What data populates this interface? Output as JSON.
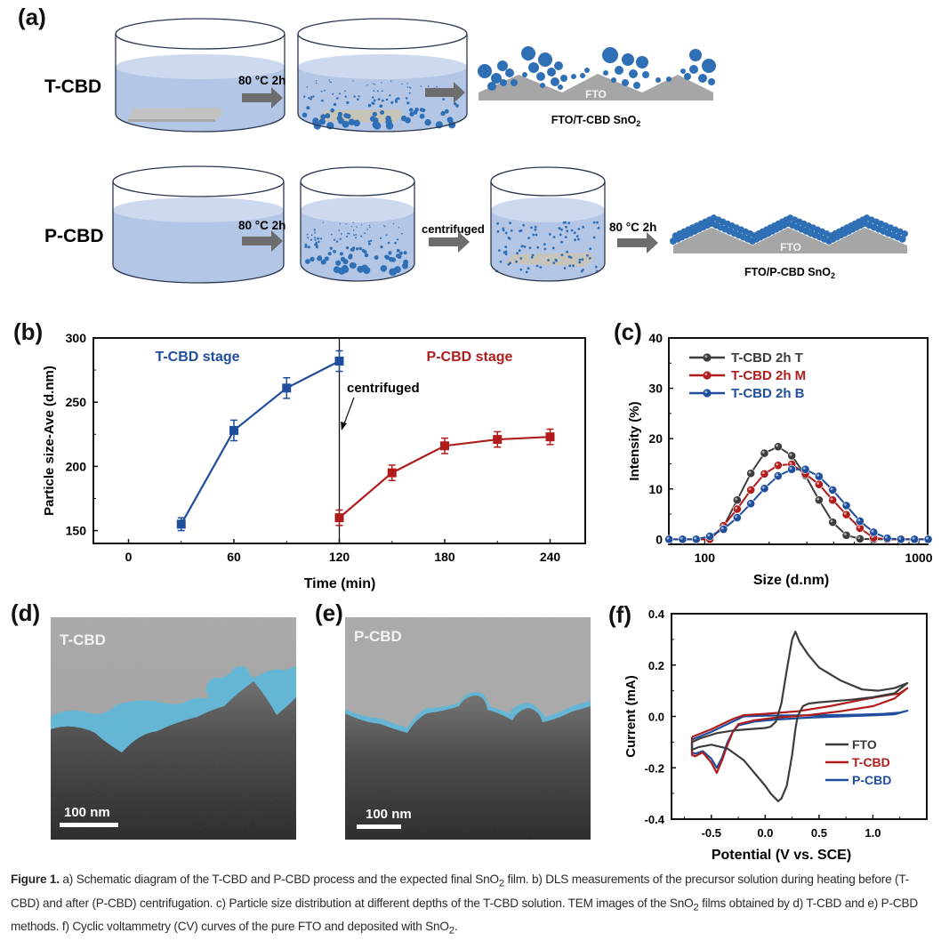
{
  "figure": {
    "panel_labels": {
      "a": "(a)",
      "b": "(b)",
      "c": "(c)",
      "d": "(d)",
      "e": "(e)",
      "f": "(f)"
    },
    "schematic": {
      "rows": [
        {
          "name": "T-CBD",
          "step1_label": "80 °C 2h",
          "result_label": "FTO/T-CBD SnO",
          "result_sub": "2",
          "substrate_label": "FTO"
        },
        {
          "name": "P-CBD",
          "step1_label": "80 °C 2h",
          "step2_label": "centrifuged",
          "step3_label": "80 °C 2h",
          "result_label": "FTO/P-CBD SnO",
          "result_sub": "2",
          "substrate_label": "FTO"
        }
      ]
    },
    "tem": [
      {
        "label": "T-CBD",
        "scale": "100 nm"
      },
      {
        "label": "P-CBD",
        "scale": "100 nm"
      }
    ],
    "caption": {
      "lead": "Figure 1.",
      "text_parts": [
        " a) Schematic diagram of the T-CBD and P-CBD process and the expected final SnO",
        "2",
        " film. b) DLS measurements of the precursor solution during heating before (T-CBD) and after (P-CBD) centrifugation. c) Particle size distribution at different depths of the T-CBD solution. TEM images of the SnO",
        "2",
        " films obtained by d) T-CBD and e) P-CBD methods. f) Cyclic voltammetry (CV) curves of the pure FTO and deposited with SnO",
        "2",
        "."
      ]
    },
    "colors": {
      "blue": "#1f4e9c",
      "red": "#b01c1c",
      "gray": "#3c3c3c",
      "liquid": "#b4c8e6",
      "particle": "#2e6fb5",
      "fto": "#a6a6a6",
      "tem_coat": "#5fb6d6"
    }
  },
  "chart_data": [
    {
      "id": "b",
      "type": "line",
      "title": "",
      "xlabel": "Time (min)",
      "ylabel": "Particle size-Ave (d.nm)",
      "xlim": [
        -20,
        260
      ],
      "ylim": [
        140,
        300
      ],
      "xticks": [
        0,
        60,
        120,
        180,
        240
      ],
      "yticks": [
        150,
        200,
        250,
        300
      ],
      "annotations": [
        {
          "text": "T-CBD stage",
          "color": "#1f4e9c"
        },
        {
          "text": "P-CBD stage",
          "color": "#b01c1c"
        },
        {
          "text": "centrifuged",
          "color": "#111111",
          "x": 120
        }
      ],
      "vline_x": 120,
      "series": [
        {
          "name": "T-CBD stage",
          "color": "#1f4e9c",
          "x": [
            30,
            60,
            90,
            120
          ],
          "y": [
            155,
            228,
            261,
            282
          ],
          "err": [
            5,
            8,
            8,
            8
          ]
        },
        {
          "name": "P-CBD stage",
          "color": "#b01c1c",
          "x": [
            120,
            150,
            180,
            210,
            240
          ],
          "y": [
            160,
            195,
            216,
            221,
            223
          ],
          "err": [
            6,
            6,
            6,
            6,
            6
          ]
        }
      ]
    },
    {
      "id": "c",
      "type": "line",
      "title": "",
      "xlabel": "Size (d.nm)",
      "ylabel": "Intensity (%)",
      "xscale": "log",
      "xlim": [
        68,
        1100
      ],
      "ylim": [
        -1,
        40
      ],
      "xticks": [
        100,
        1000
      ],
      "yticks": [
        0,
        10,
        20,
        30,
        40
      ],
      "legend": "top-left",
      "x": [
        68.1,
        78.8,
        91.3,
        105.7,
        122.4,
        141.8,
        164.2,
        190.1,
        220.2,
        255.0,
        295.3,
        342.0,
        396.1,
        458.7,
        531.2,
        615.1,
        712.4,
        825.0,
        955.4,
        1106.0
      ],
      "series": [
        {
          "name": "T-CBD 2h T",
          "color": "#3c3c3c",
          "values": [
            0,
            0,
            0,
            0,
            2.5,
            7.8,
            13.1,
            17.1,
            18.4,
            16.6,
            12.7,
            7.8,
            3.4,
            0.8,
            0.1,
            0,
            0,
            0,
            0,
            0
          ]
        },
        {
          "name": "T-CBD 2h M",
          "color": "#b01c1c",
          "values": [
            0,
            0,
            0,
            0,
            2.7,
            6.0,
            9.8,
            13.0,
            14.7,
            14.9,
            13.0,
            10.9,
            7.8,
            4.9,
            2.2,
            0.3,
            0,
            0,
            0,
            0
          ]
        },
        {
          "name": "T-CBD 2h B",
          "color": "#1f4e9c",
          "values": [
            0,
            0,
            0,
            0.6,
            2.0,
            4.3,
            7.1,
            10.1,
            12.6,
            13.9,
            13.9,
            12.5,
            9.8,
            6.7,
            3.6,
            1.4,
            0.2,
            0,
            0,
            0
          ]
        }
      ]
    },
    {
      "id": "f",
      "type": "line",
      "title": "",
      "xlabel": "Potential (V vs. SCE)",
      "ylabel": "Current (mA)",
      "xlim": [
        -0.87,
        1.5
      ],
      "ylim": [
        -0.4,
        0.4
      ],
      "xticks": [
        -0.5,
        0.0,
        0.5,
        1.0
      ],
      "yticks": [
        -0.4,
        -0.2,
        0.0,
        0.2,
        0.4
      ],
      "legend": "bottom-right",
      "series": [
        {
          "name": "FTO",
          "color": "#3c3c3c",
          "x": [
            -0.68,
            -0.6,
            -0.45,
            -0.3,
            -0.15,
            0.0,
            0.05,
            0.1,
            0.15,
            0.2,
            0.25,
            0.28,
            0.32,
            0.4,
            0.5,
            0.7,
            0.9,
            1.05,
            1.2,
            1.32,
            1.2,
            1.0,
            0.8,
            0.5,
            0.4,
            0.35,
            0.3,
            0.28,
            0.25,
            0.2,
            0.15,
            0.12,
            0.05,
            0.0,
            -0.1,
            -0.2,
            -0.35,
            -0.5,
            -0.62,
            -0.68,
            -0.68
          ],
          "y": [
            -0.1,
            -0.085,
            -0.065,
            -0.055,
            -0.05,
            -0.045,
            -0.04,
            -0.02,
            0.05,
            0.18,
            0.3,
            0.33,
            0.29,
            0.24,
            0.19,
            0.14,
            0.105,
            0.1,
            0.11,
            0.13,
            0.09,
            0.075,
            0.065,
            0.055,
            0.05,
            0.04,
            0.0,
            -0.05,
            -0.15,
            -0.27,
            -0.32,
            -0.33,
            -0.3,
            -0.27,
            -0.22,
            -0.17,
            -0.125,
            -0.11,
            -0.12,
            -0.13,
            -0.1
          ]
        },
        {
          "name": "T-CBD",
          "color": "#b01c1c",
          "x": [
            -0.68,
            -0.5,
            -0.3,
            -0.2,
            0.0,
            0.3,
            0.6,
            0.9,
            1.1,
            1.25,
            1.32,
            1.2,
            1.0,
            0.7,
            0.4,
            0.1,
            -0.1,
            -0.25,
            -0.3,
            -0.35,
            -0.4,
            -0.45,
            -0.5,
            -0.58,
            -0.65,
            -0.68,
            -0.68
          ],
          "y": [
            -0.08,
            -0.05,
            -0.01,
            0.005,
            0.01,
            0.02,
            0.04,
            0.065,
            0.08,
            0.09,
            0.11,
            0.07,
            0.04,
            0.02,
            0.005,
            -0.005,
            -0.015,
            -0.03,
            -0.06,
            -0.11,
            -0.17,
            -0.22,
            -0.18,
            -0.14,
            -0.155,
            -0.15,
            -0.08
          ]
        },
        {
          "name": "P-CBD",
          "color": "#1f4e9c",
          "x": [
            -0.68,
            -0.5,
            -0.3,
            -0.2,
            0.0,
            0.3,
            0.6,
            0.9,
            1.1,
            1.25,
            1.32,
            1.2,
            1.0,
            0.7,
            0.4,
            0.1,
            -0.1,
            -0.25,
            -0.3,
            -0.35,
            -0.4,
            -0.45,
            -0.5,
            -0.58,
            -0.65,
            -0.68,
            -0.68
          ],
          "y": [
            -0.09,
            -0.06,
            -0.02,
            0.0,
            0.003,
            0.004,
            0.005,
            0.007,
            0.01,
            0.015,
            0.022,
            0.008,
            0.004,
            0.0,
            -0.005,
            -0.012,
            -0.02,
            -0.035,
            -0.06,
            -0.1,
            -0.16,
            -0.2,
            -0.165,
            -0.135,
            -0.145,
            -0.14,
            -0.09
          ]
        }
      ]
    }
  ]
}
